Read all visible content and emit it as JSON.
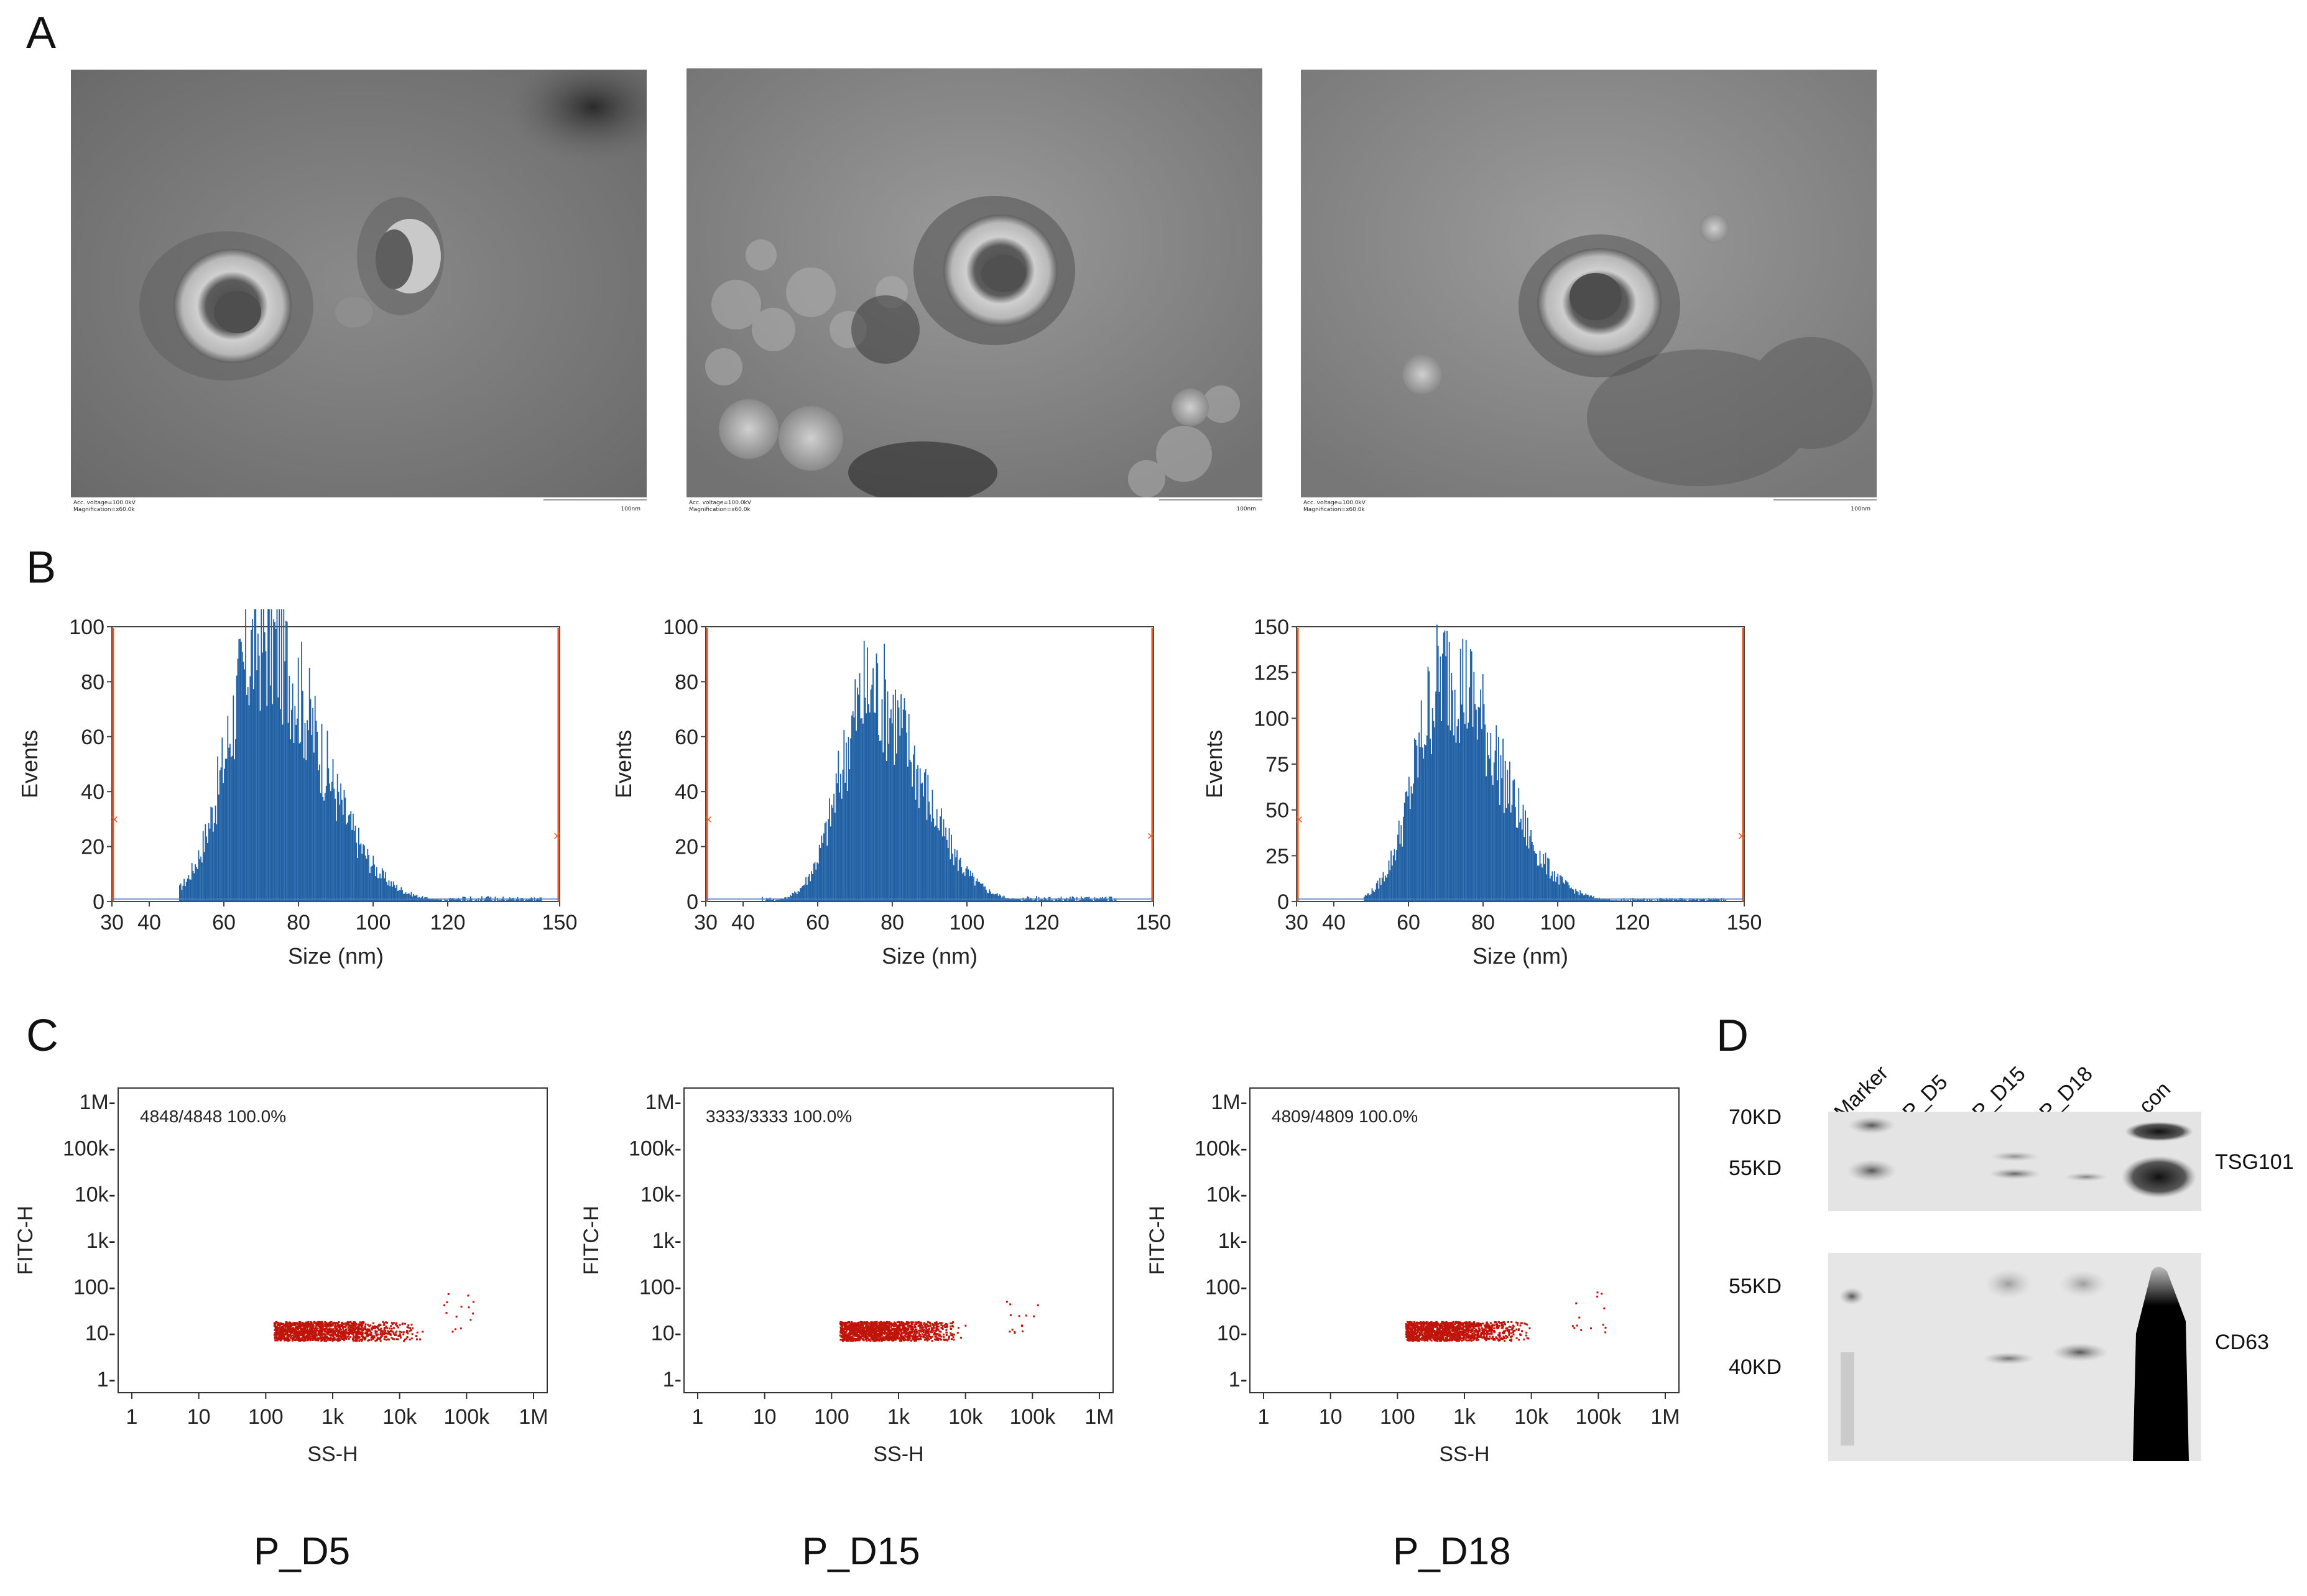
{
  "panels": {
    "A": "A",
    "B": "B",
    "C": "C",
    "D": "D"
  },
  "tem": {
    "images": [
      {
        "caption_voltage": "Acc. voltage=100.0kV",
        "caption_mag": "Magnification=x60.0k",
        "scale": "100nm"
      },
      {
        "caption_voltage": "Acc. voltage=100.0kV",
        "caption_mag": "Magnification=x60.0k",
        "scale": "100nm"
      },
      {
        "caption_voltage": "Acc. voltage=100.0kV",
        "caption_mag": "Magnification=x60.0k",
        "scale": "100nm"
      }
    ]
  },
  "chart_data": [
    {
      "type": "bar",
      "panel": "B1",
      "xlabel": "Size (nm)",
      "ylabel": "Events",
      "xlim": [
        30,
        150
      ],
      "ylim": [
        0,
        100
      ],
      "xticks": [
        "30",
        "40",
        "60",
        "80",
        "100",
        "120",
        "150"
      ],
      "yticks": [
        "0",
        "20",
        "40",
        "60",
        "80",
        "100"
      ],
      "peak_x": 70,
      "peak_y": 96,
      "sigma_left": 9,
      "sigma_right": 15,
      "start_x": 48,
      "end_x": 145,
      "color": "#1f5fa3"
    },
    {
      "type": "bar",
      "panel": "B2",
      "xlabel": "Size (nm)",
      "ylabel": "Events",
      "xlim": [
        30,
        150
      ],
      "ylim": [
        0,
        100
      ],
      "xticks": [
        "30",
        "40",
        "60",
        "80",
        "100",
        "120",
        "150"
      ],
      "yticks": [
        "0",
        "20",
        "40",
        "60",
        "80",
        "100"
      ],
      "peak_x": 74,
      "peak_y": 77,
      "sigma_left": 8,
      "sigma_right": 13,
      "start_x": 45,
      "end_x": 140,
      "color": "#1f5fa3"
    },
    {
      "type": "bar",
      "panel": "B3",
      "xlabel": "Size (nm)",
      "ylabel": "Events",
      "xlim": [
        30,
        150
      ],
      "ylim": [
        0,
        150
      ],
      "xticks": [
        "30",
        "40",
        "60",
        "80",
        "100",
        "120",
        "150"
      ],
      "yticks": [
        "0",
        "25",
        "50",
        "75",
        "100",
        "125",
        "150"
      ],
      "peak_x": 70,
      "peak_y": 125,
      "sigma_left": 8,
      "sigma_right": 14,
      "start_x": 48,
      "end_x": 145,
      "color": "#1f5fa3"
    },
    {
      "type": "scatter",
      "panel": "C1",
      "xlabel": "SS-H",
      "ylabel": "FITC-H",
      "xscale": "log",
      "yscale": "log",
      "xticks": [
        "1",
        "10",
        "100",
        "1k",
        "10k",
        "100k",
        "1M"
      ],
      "yticks": [
        "1-",
        "10-",
        "100-",
        "1k-",
        "10k-",
        "100k-",
        "1M-"
      ],
      "gate_text": "4848/4848   100.0%",
      "cloud_x": [
        130,
        25000
      ],
      "cloud_y": [
        7,
        18
      ],
      "color": "#c0140a"
    },
    {
      "type": "scatter",
      "panel": "C2",
      "xlabel": "SS-H",
      "ylabel": "FITC-H",
      "xscale": "log",
      "yscale": "log",
      "xticks": [
        "1",
        "10",
        "100",
        "1k",
        "10k",
        "100k",
        "1M"
      ],
      "yticks": [
        "1-",
        "10-",
        "100-",
        "1k-",
        "10k-",
        "100k-",
        "1M-"
      ],
      "gate_text": "3333/3333   100.0%",
      "cloud_x": [
        130,
        10000
      ],
      "cloud_y": [
        7,
        18
      ],
      "color": "#c0140a"
    },
    {
      "type": "scatter",
      "panel": "C3",
      "xlabel": "SS-H",
      "ylabel": "FITC-H",
      "xscale": "log",
      "yscale": "log",
      "xticks": [
        "1",
        "10",
        "100",
        "1k",
        "10k",
        "100k",
        "1M"
      ],
      "yticks": [
        "1-",
        "10-",
        "100-",
        "1k-",
        "10k-",
        "100k-",
        "1M-"
      ],
      "gate_text": "4809/4809   100.0%",
      "cloud_x": [
        130,
        12000
      ],
      "cloud_y": [
        7,
        18
      ],
      "color": "#c0140a"
    }
  ],
  "samples": [
    "P_D5",
    "P_D15",
    "P_D18"
  ],
  "western": {
    "lanes": [
      "Marker",
      "P_D5",
      "P_D15",
      "P_D18",
      "con"
    ],
    "markers_top": [
      "70KD",
      "55KD"
    ],
    "markers_bottom": [
      "55KD",
      "40KD"
    ],
    "protein_top": "TSG101",
    "protein_bottom": "CD63"
  }
}
